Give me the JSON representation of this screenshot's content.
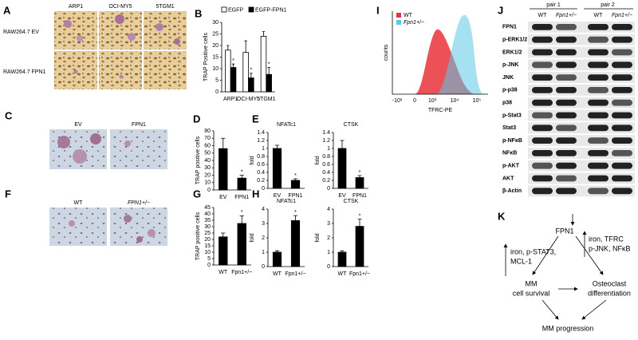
{
  "chart_data": [
    {
      "type": "bar",
      "y_label": "TRAP Positive cells",
      "categories": [
        "ARP1",
        "OCI-MY5",
        "5TGM1"
      ],
      "series": [
        {
          "name": "EGFP",
          "color": "#ffffff",
          "values": [
            18,
            17,
            24
          ],
          "errors": [
            2,
            5,
            2
          ],
          "annotations": [
            null,
            null,
            null
          ]
        },
        {
          "name": "EGFP-FPN1",
          "color": "#000000",
          "values": [
            10.5,
            6,
            7.5
          ],
          "errors": [
            1.5,
            2,
            3
          ],
          "annotations": [
            "*",
            "*",
            "*"
          ]
        }
      ],
      "ylim": [
        0,
        30
      ],
      "yticks": [
        0,
        5,
        10,
        15,
        20,
        25,
        30
      ]
    },
    {
      "type": "bar",
      "y_label": "TRAP positive cells",
      "categories": [
        "EV",
        "FPN1"
      ],
      "values": [
        56,
        16
      ],
      "errors": [
        14,
        4
      ],
      "annotations": [
        null,
        "*"
      ],
      "color": "#000000",
      "ylim": [
        0,
        80
      ],
      "yticks": [
        0,
        10,
        20,
        30,
        40,
        50,
        60,
        70,
        80
      ]
    },
    {
      "type": "bar",
      "title": "NFATc1",
      "y_label": "fold",
      "categories": [
        "EV",
        "FPN1"
      ],
      "values": [
        1,
        0.2
      ],
      "errors": [
        0.08,
        0.04
      ],
      "annotations": [
        null,
        "*"
      ],
      "color": "#000000",
      "ylim": [
        0,
        1.4
      ],
      "yticks": [
        0,
        0.2,
        0.4,
        0.6,
        0.8,
        1,
        1.2,
        1.4
      ]
    },
    {
      "type": "bar",
      "title": "CTSK",
      "y_label": "fold",
      "categories": [
        "EV",
        "FPN1"
      ],
      "values": [
        1,
        0.27
      ],
      "errors": [
        0.2,
        0.05
      ],
      "annotations": [
        null,
        "*"
      ],
      "color": "#000000",
      "ylim": [
        0,
        1.4
      ],
      "yticks": [
        0,
        0.2,
        0.4,
        0.6,
        0.8,
        1,
        1.2,
        1.4
      ]
    },
    {
      "type": "bar",
      "y_label": "TRAP positive cells",
      "categories": [
        "WT",
        "Fpn1+/−"
      ],
      "values": [
        22,
        32.5
      ],
      "errors": [
        3,
        6
      ],
      "annotations": [
        null,
        "*"
      ],
      "color": "#000000",
      "ylim": [
        0,
        45
      ],
      "yticks": [
        0,
        5,
        10,
        15,
        20,
        25,
        30,
        35,
        40,
        45
      ]
    },
    {
      "type": "bar",
      "title": "NFATc1",
      "y_label": "fold",
      "categories": [
        "WT",
        "Fpn1+/−"
      ],
      "values": [
        1,
        3.2
      ],
      "errors": [
        0.1,
        0.35
      ],
      "annotations": [
        null,
        "*"
      ],
      "color": "#000000",
      "ylim": [
        0,
        4
      ],
      "yticks": [
        0,
        1,
        2,
        3,
        4
      ]
    },
    {
      "type": "bar",
      "title": "CTSK",
      "y_label": "fold",
      "categories": [
        "WT",
        "Fpn1+/−"
      ],
      "values": [
        1,
        2.8
      ],
      "errors": [
        0.1,
        0.5
      ],
      "annotations": [
        null,
        "*"
      ],
      "color": "#000000",
      "ylim": [
        0,
        4
      ],
      "yticks": [
        0,
        1,
        2,
        3,
        4
      ]
    }
  ],
  "figure": {
    "panel_labels": [
      "A",
      "B",
      "C",
      "D",
      "E",
      "F",
      "G",
      "H",
      "I",
      "J",
      "K"
    ],
    "A": {
      "columns": [
        "ARP1",
        "OCI-MY5",
        "5TGM1"
      ],
      "rows": [
        "RAW264.7 EV",
        "RAW264.7 FPN1"
      ]
    },
    "C": {
      "columns": [
        "EV",
        "FPN1"
      ]
    },
    "F": {
      "columns": [
        "WT",
        "FPN1+/−"
      ]
    },
    "I": {
      "legend": [
        "WT",
        "Fpn1+/−"
      ],
      "colors": [
        "#e8333a",
        "#5bc8e6"
      ],
      "x_label": "TFRC-PE",
      "y_label": "counts",
      "xticks": [
        "-10³",
        "0",
        "10³",
        "10⁴",
        "10⁵"
      ]
    },
    "J": {
      "pairs": [
        "pair 1",
        "pair 2"
      ],
      "lanes": [
        "WT",
        "Fpn1+/−",
        "WT",
        "Fpn1+/−"
      ],
      "rows": [
        "FPN1",
        "p-ERK1/2",
        "ERK1/2",
        "p-JNK",
        "JNK",
        "p-p38",
        "p38",
        "p-Stat3",
        "Stat3",
        "p-NFκB",
        "NFκB",
        "p-AKT",
        "AKT",
        "β-Actin"
      ]
    },
    "K": {
      "source": "FPN1",
      "left_effect": [
        "iron, p-STAT3,",
        "MCL-1"
      ],
      "right_effect": [
        "iron, TFRC",
        "p-JNK, NFκB"
      ],
      "survival": [
        "MM",
        "cell survival"
      ],
      "osteoclast": [
        "Osteoclast",
        "differentiation"
      ],
      "outcome": "MM progression"
    }
  }
}
